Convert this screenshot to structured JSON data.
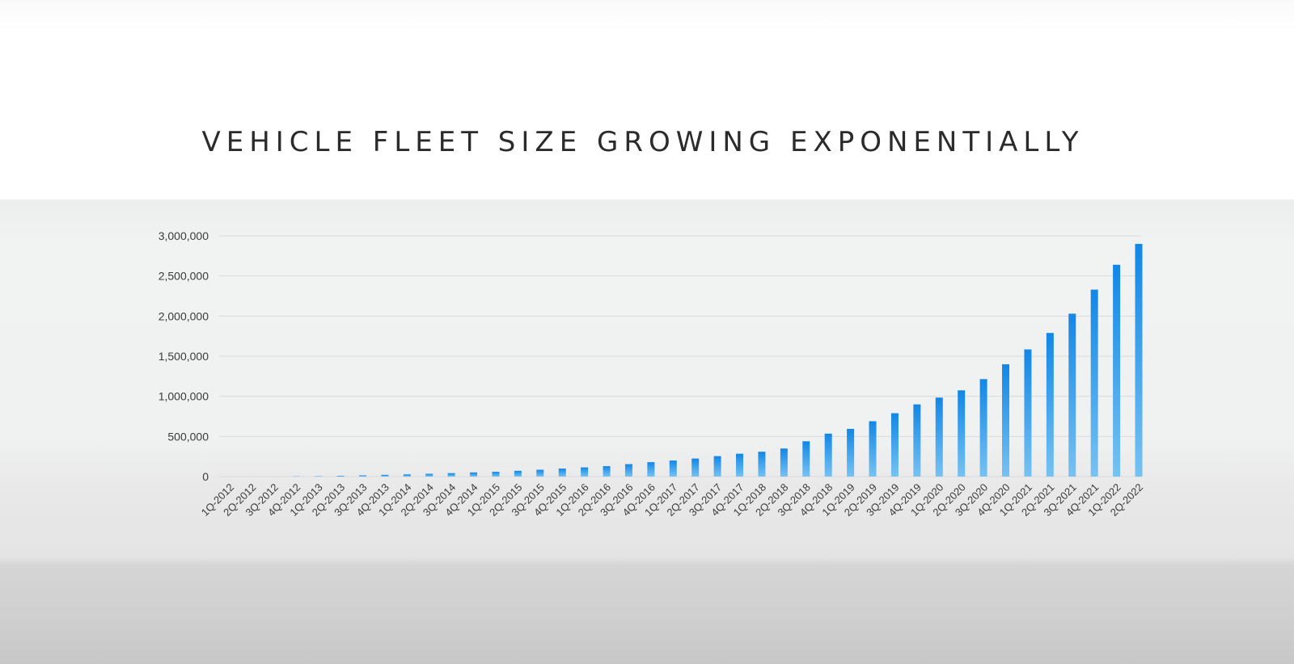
{
  "slide": {
    "title": "VEHICLE FLEET SIZE GROWING EXPONENTIALLY"
  },
  "colors": {
    "bar_top": "#1287e6",
    "bar_bottom": "#76c2f3",
    "gridline": "#d9dbdd",
    "text": "#2b2b2b"
  },
  "chart_data": {
    "type": "bar",
    "title": "VEHICLE FLEET SIZE GROWING EXPONENTIALLY",
    "xlabel": "",
    "ylabel": "",
    "ylim": [
      0,
      3000000
    ],
    "grid": true,
    "legend": "none",
    "yticks": [
      0,
      500000,
      1000000,
      1500000,
      2000000,
      2500000,
      3000000
    ],
    "ytick_labels": [
      "0",
      "500,000",
      "1,000,000",
      "1,500,000",
      "2,000,000",
      "2,500,000",
      "3,000,000"
    ],
    "categories": [
      "1Q-2012",
      "2Q-2012",
      "3Q-2012",
      "4Q-2012",
      "1Q-2013",
      "2Q-2013",
      "3Q-2013",
      "4Q-2013",
      "1Q-2014",
      "2Q-2014",
      "3Q-2014",
      "4Q-2014",
      "1Q-2015",
      "2Q-2015",
      "3Q-2015",
      "4Q-2015",
      "1Q-2016",
      "2Q-2016",
      "3Q-2016",
      "4Q-2016",
      "1Q-2017",
      "2Q-2017",
      "3Q-2017",
      "4Q-2017",
      "1Q-2018",
      "2Q-2018",
      "3Q-2018",
      "4Q-2018",
      "1Q-2019",
      "2Q-2019",
      "3Q-2019",
      "4Q-2019",
      "1Q-2020",
      "2Q-2020",
      "3Q-2020",
      "4Q-2020",
      "1Q-2021",
      "2Q-2021",
      "3Q-2021",
      "4Q-2021",
      "1Q-2022",
      "2Q-2022"
    ],
    "values": [
      0,
      0,
      0,
      2000,
      5000,
      10000,
      15000,
      22000,
      28000,
      35000,
      43000,
      52000,
      60000,
      72000,
      85000,
      100000,
      115000,
      130000,
      155000,
      180000,
      200000,
      225000,
      255000,
      285000,
      310000,
      350000,
      440000,
      535000,
      595000,
      690000,
      790000,
      900000,
      985000,
      1075000,
      1215000,
      1400000,
      1585000,
      1790000,
      2030000,
      2330000,
      2640000,
      2900000
    ]
  }
}
